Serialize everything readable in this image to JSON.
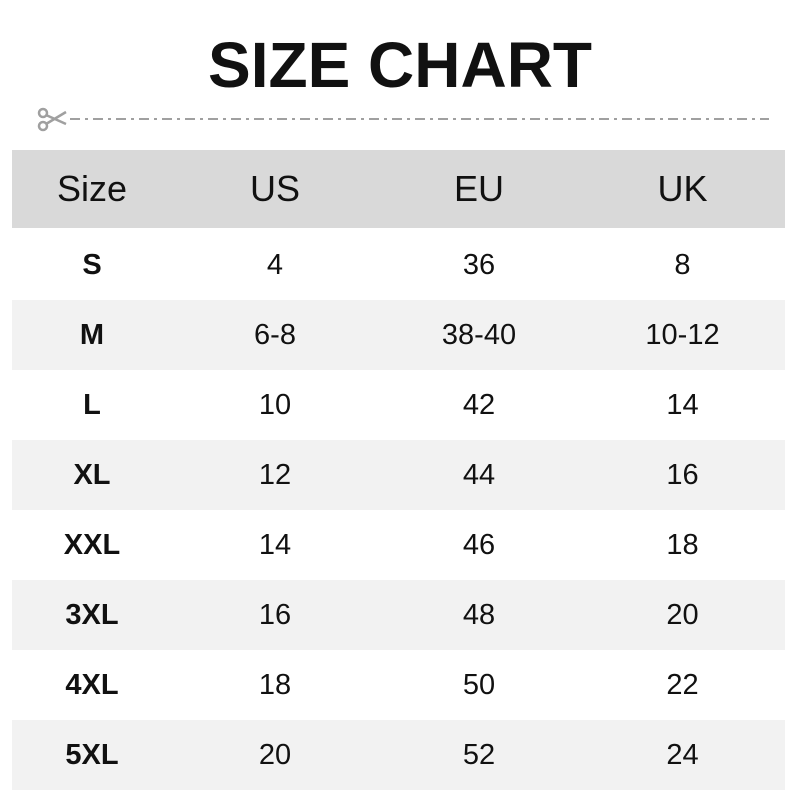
{
  "title": "SIZE CHART",
  "colors": {
    "header_bg": "#d9d9d9",
    "alt_row_bg": "#f2f2f2",
    "cut_line": "#a0a0a0"
  },
  "icons": {
    "cut": "scissors-icon"
  },
  "table": {
    "headers": [
      "Size",
      "US",
      "EU",
      "UK"
    ],
    "rows": [
      [
        "S",
        "4",
        "36",
        "8"
      ],
      [
        "M",
        "6-8",
        "38-40",
        "10-12"
      ],
      [
        "L",
        "10",
        "42",
        "14"
      ],
      [
        "XL",
        "12",
        "44",
        "16"
      ],
      [
        "XXL",
        "14",
        "46",
        "18"
      ],
      [
        "3XL",
        "16",
        "48",
        "20"
      ],
      [
        "4XL",
        "18",
        "50",
        "22"
      ],
      [
        "5XL",
        "20",
        "52",
        "24"
      ]
    ]
  }
}
